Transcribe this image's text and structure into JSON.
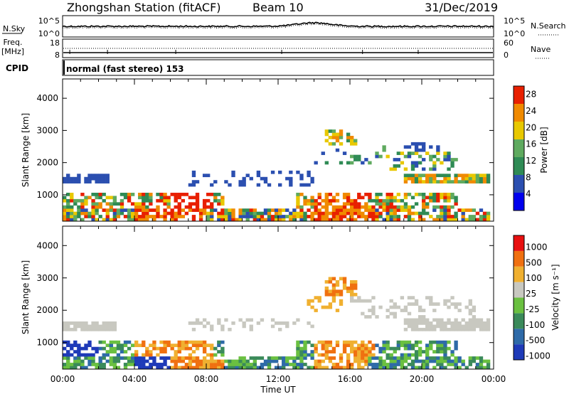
{
  "header": {
    "station": "Zhongshan Station (fitACF)",
    "beam": "Beam 10",
    "date": "31/Dec/2019"
  },
  "noise_panel": {
    "left_label": "N.Sky",
    "right_label": "N.Search",
    "left_ticks": [
      "10^5",
      "10^0"
    ],
    "right_ticks": [
      "10^5",
      "10^0"
    ]
  },
  "freq_panel": {
    "left_label_1": "Freq.",
    "left_label_2": "[MHz]",
    "right_label": "Nave",
    "left_ticks": [
      "18",
      "8"
    ],
    "right_ticks": [
      "60",
      "0"
    ]
  },
  "cpid": {
    "label": "CPID",
    "text": "normal (fast stereo) 153"
  },
  "chart_data": [
    {
      "type": "heatmap",
      "name": "power",
      "ylabel": "Slant Range [km]",
      "y_ticks": [
        "1000",
        "2000",
        "3000",
        "4000"
      ],
      "ylim": [
        180,
        4600
      ],
      "xlim": [
        0,
        24
      ],
      "colorbar_label": "Power [dB]",
      "colorbar_ticks": [
        "4",
        "8",
        "12",
        "16",
        "20",
        "24",
        "28"
      ],
      "colors": [
        "#0000ee",
        "#2b4fb0",
        "#2f8b55",
        "#5faa5f",
        "#e8c800",
        "#f08a00",
        "#e82000"
      ]
    },
    {
      "type": "heatmap",
      "name": "velocity",
      "ylabel": "Slant Range [km]",
      "y_ticks": [
        "1000",
        "2000",
        "3000",
        "4000"
      ],
      "ylim": [
        180,
        4600
      ],
      "xlim": [
        0,
        24
      ],
      "colorbar_label": "Velocity [m s⁻¹]",
      "colorbar_ticks": [
        "1000",
        "500",
        "100",
        "25",
        "-25",
        "-100",
        "-500",
        "-1000"
      ],
      "colors": [
        "#1e3ab8",
        "#2e6aa8",
        "#3a8a5a",
        "#6ac040",
        "#c8c8c0",
        "#f0b030",
        "#f07010",
        "#e81010"
      ]
    }
  ],
  "x_axis": {
    "ticks": [
      "00:00",
      "04:00",
      "08:00",
      "12:00",
      "16:00",
      "20:00",
      "00:00"
    ],
    "label": "Time UT"
  }
}
